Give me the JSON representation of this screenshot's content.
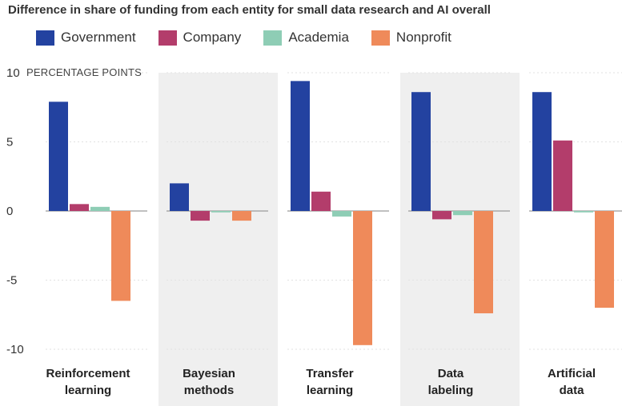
{
  "chart_data": {
    "type": "bar",
    "title": "Difference in share of funding from each entity for small data research and AI overall",
    "ylabel": "PERCENTAGE POINTS",
    "ylim": [
      -10,
      10
    ],
    "yticks": [
      10,
      5,
      0,
      -5,
      -10
    ],
    "yticklabels": [
      "10",
      "5",
      "0",
      "-5",
      "-10"
    ],
    "grid": true,
    "legend_position": "top-left",
    "categories": [
      [
        "Reinforcement",
        "learning"
      ],
      [
        "Bayesian",
        "methods"
      ],
      [
        "Transfer",
        "learning"
      ],
      [
        "Data",
        "labeling"
      ],
      [
        "Artificial",
        "data"
      ]
    ],
    "series": [
      {
        "name": "Government",
        "color": "#2342a0",
        "values": [
          7.9,
          2.0,
          9.4,
          8.6,
          8.6
        ]
      },
      {
        "name": "Company",
        "color": "#b33d6b",
        "values": [
          0.5,
          -0.7,
          1.4,
          -0.6,
          5.1
        ]
      },
      {
        "name": "Academia",
        "color": "#8ecdb5",
        "values": [
          0.3,
          -0.1,
          -0.4,
          -0.3,
          -0.1
        ]
      },
      {
        "name": "Nonprofit",
        "color": "#ef8a5a",
        "values": [
          -6.5,
          -0.7,
          -9.7,
          -7.4,
          -7.0
        ]
      }
    ],
    "band_color": "#efefef",
    "grid_color": "#e2e2e2",
    "zero_line_color": "#9a9a9a"
  }
}
